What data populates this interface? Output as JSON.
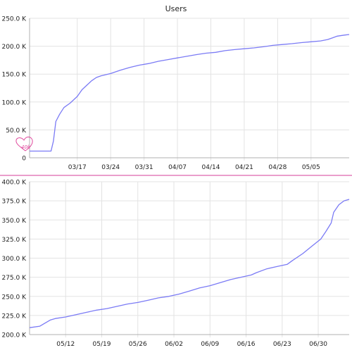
{
  "page": {
    "title": "Users",
    "annotation": "40k"
  },
  "colors": {
    "line": "#7b7bf5",
    "grid": "#e3e3e3",
    "axis": "#b0b0b0",
    "divider": "#d63c9a",
    "annotation": "#e0489c",
    "text": "#222222"
  },
  "chart_data": [
    {
      "type": "line",
      "title": "Users",
      "xlabel": "",
      "ylabel": "",
      "grid": true,
      "x_ticks": [
        "03/17",
        "03/24",
        "03/31",
        "04/07",
        "04/14",
        "04/21",
        "04/28",
        "05/05"
      ],
      "x_tick_pos": [
        10,
        17,
        24,
        31,
        38,
        45,
        52,
        59
      ],
      "xlim": [
        0,
        67
      ],
      "y_ticks": [
        "0",
        "50.0 K",
        "100.0 K",
        "150.0 K",
        "200.0 K",
        "250.0 K"
      ],
      "y_tick_values": [
        0,
        50000,
        100000,
        150000,
        200000,
        250000
      ],
      "ylim": [
        0,
        250000
      ],
      "series": [
        {
          "points": [
            [
              0,
              12000
            ],
            [
              4.5,
              12000
            ],
            [
              5.0,
              30000
            ],
            [
              5.5,
              65000
            ],
            [
              6.3,
              78000
            ],
            [
              7.2,
              90000
            ],
            [
              8.5,
              98000
            ],
            [
              10,
              110000
            ],
            [
              11,
              122000
            ],
            [
              12,
              130000
            ],
            [
              13,
              138000
            ],
            [
              14,
              144000
            ],
            [
              15,
              147000
            ],
            [
              17,
              151000
            ],
            [
              19,
              157000
            ],
            [
              21,
              162000
            ],
            [
              23,
              166000
            ],
            [
              25,
              169000
            ],
            [
              27,
              173000
            ],
            [
              29,
              176000
            ],
            [
              31,
              179000
            ],
            [
              33,
              182000
            ],
            [
              35,
              185000
            ],
            [
              37,
              187500
            ],
            [
              39,
              189000
            ],
            [
              41,
              192000
            ],
            [
              43,
              194000
            ],
            [
              45,
              195500
            ],
            [
              47,
              197000
            ],
            [
              49,
              199000
            ],
            [
              51,
              201500
            ],
            [
              53,
              203000
            ],
            [
              55,
              204500
            ],
            [
              57,
              206500
            ],
            [
              59,
              208000
            ],
            [
              61,
              209500
            ],
            [
              62.5,
              212000
            ],
            [
              63.5,
              215000
            ],
            [
              64.5,
              218000
            ],
            [
              66,
              220000
            ],
            [
              67,
              221000
            ]
          ]
        }
      ]
    },
    {
      "type": "line",
      "title": "",
      "xlabel": "",
      "ylabel": "",
      "grid": true,
      "x_ticks": [
        "05/12",
        "05/19",
        "05/26",
        "06/02",
        "06/09",
        "06/16",
        "06/23",
        "06/30"
      ],
      "x_tick_pos": [
        7,
        14,
        21,
        28,
        35,
        42,
        49,
        56
      ],
      "xlim": [
        0,
        62
      ],
      "y_ticks": [
        "200.0 K",
        "225.0 K",
        "250.0 K",
        "275.0 K",
        "300.0 K",
        "325.0 K",
        "350.0 K",
        "375.0 K",
        "400.0 K"
      ],
      "y_tick_values": [
        200000,
        225000,
        250000,
        275000,
        300000,
        325000,
        350000,
        375000,
        400000
      ],
      "ylim": [
        200000,
        400000
      ],
      "series": [
        {
          "points": [
            [
              0,
              209000
            ],
            [
              2,
              211000
            ],
            [
              3,
              215000
            ],
            [
              4,
              219000
            ],
            [
              5,
              221000
            ],
            [
              7,
              223000
            ],
            [
              9,
              226000
            ],
            [
              11,
              229000
            ],
            [
              13,
              232000
            ],
            [
              15,
              234000
            ],
            [
              17,
              237000
            ],
            [
              19,
              240000
            ],
            [
              21,
              242000
            ],
            [
              23,
              245000
            ],
            [
              25,
              248000
            ],
            [
              27,
              250000
            ],
            [
              29,
              253000
            ],
            [
              31,
              257000
            ],
            [
              33,
              261000
            ],
            [
              35,
              264000
            ],
            [
              37,
              268000
            ],
            [
              39,
              272000
            ],
            [
              41,
              275000
            ],
            [
              43,
              278000
            ],
            [
              44,
              281000
            ],
            [
              46,
              286000
            ],
            [
              48,
              289000
            ],
            [
              50,
              292000
            ],
            [
              51,
              297000
            ],
            [
              53,
              306000
            ],
            [
              55,
              317000
            ],
            [
              56.5,
              325000
            ],
            [
              57.5,
              335000
            ],
            [
              58.5,
              346000
            ],
            [
              59,
              360000
            ],
            [
              60,
              370000
            ],
            [
              61,
              375000
            ],
            [
              62,
              377000
            ]
          ]
        }
      ]
    }
  ]
}
